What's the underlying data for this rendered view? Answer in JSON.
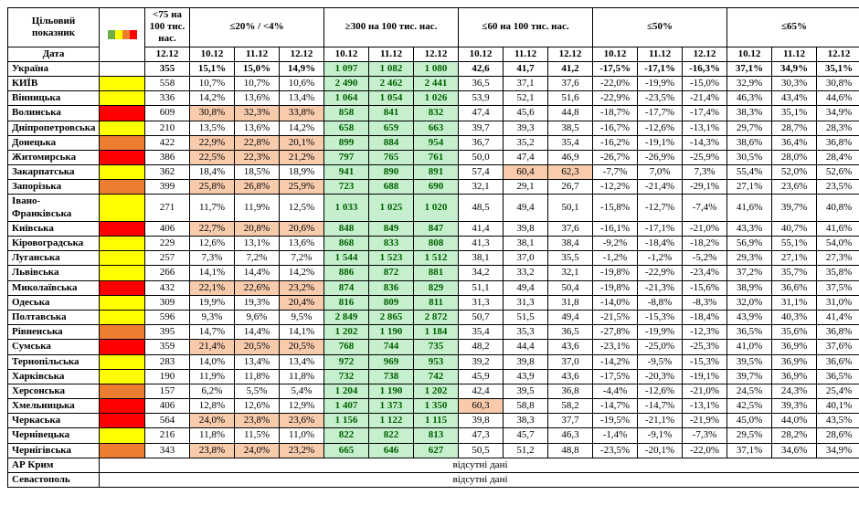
{
  "header": {
    "target_label": "Цільовий показник",
    "date_label": "Дата",
    "groups": [
      "<75 на 100 тис. нас.",
      "≤20% / <4%",
      "≥300 на 100 тис. нас.",
      "≤60 на 100 тис. нас.",
      "≤50%",
      "≤65%"
    ],
    "dates": [
      "12.12",
      "10.12",
      "11.12",
      "12.12",
      "10.12",
      "11.12",
      "12.12",
      "10.12",
      "11.12",
      "12.12",
      "10.12",
      "11.12",
      "12.12",
      "10.12",
      "11.12",
      "12.12"
    ]
  },
  "colors": {
    "green": "#70ad47",
    "yellow": "#ffff00",
    "orange": "#ed7d31",
    "red": "#ff0000",
    "cell_green": "#c6efce",
    "cell_pink": "#f8cbad",
    "cell_blue": "#bdd7ee",
    "border": "#000000"
  },
  "legend_colors": [
    "#70ad47",
    "#ffff00",
    "#ed7d31",
    "#ff0000"
  ],
  "col_widths": {
    "region": 100,
    "legend": 50,
    "data": 49
  },
  "rows": [
    {
      "name": "Україна",
      "color": "",
      "v": [
        "355",
        "15,1%",
        "15,0%",
        "14,9%",
        "1 097",
        "1 082",
        "1 080",
        "42,6",
        "41,7",
        "41,2",
        "-17,5%",
        "-17,1%",
        "-16,3%",
        "37,1%",
        "34,9%",
        "35,1%"
      ],
      "hl": {
        "1": "b",
        "2": "b",
        "3": "b",
        "4": "g",
        "5": "g",
        "6": "g"
      }
    },
    {
      "name": "КИЇВ",
      "color": "#ffff00",
      "v": [
        "558",
        "10,7%",
        "10,7%",
        "10,6%",
        "2 490",
        "2 462",
        "2 441",
        "36,5",
        "37,1",
        "37,6",
        "-22,0%",
        "-19,9%",
        "-15,0%",
        "32,9%",
        "30,3%",
        "30,8%"
      ],
      "hl": {
        "4": "g",
        "5": "g",
        "6": "g"
      }
    },
    {
      "name": "Вінницька",
      "color": "#ffff00",
      "v": [
        "336",
        "14,2%",
        "13,6%",
        "13,4%",
        "1 064",
        "1 054",
        "1 026",
        "53,9",
        "52,1",
        "51,6",
        "-22,9%",
        "-23,5%",
        "-21,4%",
        "46,3%",
        "43,4%",
        "44,6%"
      ],
      "hl": {
        "4": "g",
        "5": "g",
        "6": "g"
      }
    },
    {
      "name": "Волинська",
      "color": "#ff0000",
      "v": [
        "609",
        "30,8%",
        "32,3%",
        "33,8%",
        "858",
        "841",
        "832",
        "47,4",
        "45,6",
        "44,8",
        "-18,7%",
        "-17,7%",
        "-17,4%",
        "38,3%",
        "35,1%",
        "34,9%"
      ],
      "hl": {
        "1": "p",
        "2": "p",
        "3": "p",
        "4": "g",
        "5": "g",
        "6": "g"
      }
    },
    {
      "name": "Дніпропетровська",
      "color": "#ffff00",
      "v": [
        "210",
        "13,5%",
        "13,6%",
        "14,2%",
        "658",
        "659",
        "663",
        "39,7",
        "39,3",
        "38,5",
        "-16,7%",
        "-12,6%",
        "-13,1%",
        "29,7%",
        "28,7%",
        "28,3%"
      ],
      "hl": {
        "4": "g",
        "5": "g",
        "6": "g"
      }
    },
    {
      "name": "Донецька",
      "color": "#ed7d31",
      "v": [
        "422",
        "22,9%",
        "22,8%",
        "20,1%",
        "899",
        "884",
        "954",
        "36,7",
        "35,2",
        "35,4",
        "-16,2%",
        "-19,1%",
        "-14,3%",
        "38,6%",
        "36,4%",
        "36,8%"
      ],
      "hl": {
        "1": "p",
        "2": "p",
        "3": "p",
        "4": "g",
        "5": "g",
        "6": "g"
      }
    },
    {
      "name": "Житомирська",
      "color": "#ff0000",
      "v": [
        "386",
        "22,5%",
        "22,3%",
        "21,2%",
        "797",
        "765",
        "761",
        "50,0",
        "47,4",
        "46,9",
        "-26,7%",
        "-26,9%",
        "-25,9%",
        "30,5%",
        "28,0%",
        "28,4%"
      ],
      "hl": {
        "1": "p",
        "2": "p",
        "3": "p",
        "4": "g",
        "5": "g",
        "6": "g"
      }
    },
    {
      "name": "Закарпатська",
      "color": "#ffff00",
      "v": [
        "362",
        "18,4%",
        "18,5%",
        "18,9%",
        "941",
        "890",
        "891",
        "57,4",
        "60,4",
        "62,3",
        "-7,7%",
        "7,0%",
        "7,3%",
        "55,4%",
        "52,0%",
        "52,6%"
      ],
      "hl": {
        "4": "g",
        "5": "g",
        "6": "g",
        "8": "p",
        "9": "p"
      }
    },
    {
      "name": "Запорізька",
      "color": "#ed7d31",
      "v": [
        "399",
        "25,8%",
        "26,8%",
        "25,9%",
        "723",
        "688",
        "690",
        "32,1",
        "29,1",
        "26,7",
        "-12,2%",
        "-21,4%",
        "-29,1%",
        "27,1%",
        "23,6%",
        "23,5%"
      ],
      "hl": {
        "1": "p",
        "2": "p",
        "3": "p",
        "4": "g",
        "5": "g",
        "6": "g"
      }
    },
    {
      "name": "Івано-Франківська",
      "color": "#ffff00",
      "v": [
        "271",
        "11,7%",
        "11,9%",
        "12,5%",
        "1 033",
        "1 025",
        "1 020",
        "48,5",
        "49,4",
        "50,1",
        "-15,8%",
        "-12,7%",
        "-7,4%",
        "41,6%",
        "39,7%",
        "40,8%"
      ],
      "hl": {
        "4": "g",
        "5": "g",
        "6": "g"
      }
    },
    {
      "name": "Київська",
      "color": "#ff0000",
      "v": [
        "406",
        "22,7%",
        "20,8%",
        "20,6%",
        "848",
        "849",
        "847",
        "41,4",
        "39,8",
        "37,6",
        "-16,1%",
        "-17,1%",
        "-21,0%",
        "43,3%",
        "40,7%",
        "41,6%"
      ],
      "hl": {
        "1": "p",
        "2": "p",
        "3": "p",
        "4": "g",
        "5": "g",
        "6": "g"
      }
    },
    {
      "name": "Кіровоградська",
      "color": "#ffff00",
      "v": [
        "229",
        "12,6%",
        "13,1%",
        "13,6%",
        "868",
        "833",
        "808",
        "41,3",
        "38,1",
        "38,4",
        "-9,2%",
        "-18,4%",
        "-18,2%",
        "56,9%",
        "55,1%",
        "54,0%"
      ],
      "hl": {
        "4": "g",
        "5": "g",
        "6": "g"
      }
    },
    {
      "name": "Луганська",
      "color": "#ffff00",
      "v": [
        "257",
        "7,3%",
        "7,2%",
        "7,2%",
        "1 544",
        "1 523",
        "1 512",
        "38,1",
        "37,0",
        "35,5",
        "-1,2%",
        "-1,2%",
        "-5,2%",
        "29,3%",
        "27,1%",
        "27,3%"
      ],
      "hl": {
        "4": "g",
        "5": "g",
        "6": "g"
      }
    },
    {
      "name": "Львівська",
      "color": "#ffff00",
      "v": [
        "266",
        "14,1%",
        "14,4%",
        "14,2%",
        "886",
        "872",
        "881",
        "34,2",
        "33,2",
        "32,1",
        "-19,8%",
        "-22,9%",
        "-23,4%",
        "37,2%",
        "35,7%",
        "35,8%"
      ],
      "hl": {
        "4": "g",
        "5": "g",
        "6": "g"
      }
    },
    {
      "name": "Миколаївська",
      "color": "#ff0000",
      "v": [
        "432",
        "22,1%",
        "22,6%",
        "23,2%",
        "874",
        "836",
        "829",
        "51,1",
        "49,4",
        "50,4",
        "-19,8%",
        "-21,3%",
        "-15,6%",
        "38,9%",
        "36,6%",
        "37,5%"
      ],
      "hl": {
        "1": "p",
        "2": "p",
        "3": "p",
        "4": "g",
        "5": "g",
        "6": "g"
      }
    },
    {
      "name": "Одеська",
      "color": "#ffff00",
      "v": [
        "309",
        "19,9%",
        "19,3%",
        "20,4%",
        "816",
        "809",
        "811",
        "31,3",
        "31,3",
        "31,8",
        "-14,0%",
        "-8,8%",
        "-8,3%",
        "32,0%",
        "31,1%",
        "31,0%"
      ],
      "hl": {
        "3": "p",
        "4": "g",
        "5": "g",
        "6": "g"
      }
    },
    {
      "name": "Полтавська",
      "color": "#ffff00",
      "v": [
        "596",
        "9,3%",
        "9,6%",
        "9,5%",
        "2 849",
        "2 865",
        "2 872",
        "50,7",
        "51,5",
        "49,4",
        "-21,5%",
        "-15,3%",
        "-18,4%",
        "43,9%",
        "40,3%",
        "41,4%"
      ],
      "hl": {
        "4": "g",
        "5": "g",
        "6": "g"
      }
    },
    {
      "name": "Рівненська",
      "color": "#ed7d31",
      "v": [
        "395",
        "14,7%",
        "14,4%",
        "14,1%",
        "1 202",
        "1 190",
        "1 184",
        "35,4",
        "35,3",
        "36,5",
        "-27,8%",
        "-19,9%",
        "-12,3%",
        "36,5%",
        "35,6%",
        "36,8%"
      ],
      "hl": {
        "4": "g",
        "5": "g",
        "6": "g"
      }
    },
    {
      "name": "Сумська",
      "color": "#ff0000",
      "v": [
        "359",
        "21,4%",
        "20,5%",
        "20,5%",
        "768",
        "744",
        "735",
        "48,2",
        "44,4",
        "43,6",
        "-23,1%",
        "-25,0%",
        "-25,3%",
        "41,0%",
        "36,9%",
        "37,6%"
      ],
      "hl": {
        "1": "p",
        "2": "p",
        "3": "p",
        "4": "g",
        "5": "g",
        "6": "g"
      }
    },
    {
      "name": "Тернопільська",
      "color": "#ffff00",
      "v": [
        "283",
        "14,0%",
        "13,4%",
        "13,4%",
        "972",
        "969",
        "953",
        "39,2",
        "39,8",
        "37,0",
        "-14,2%",
        "-9,5%",
        "-15,3%",
        "39,5%",
        "36,9%",
        "36,6%"
      ],
      "hl": {
        "4": "g",
        "5": "g",
        "6": "g"
      }
    },
    {
      "name": "Харківська",
      "color": "#ffff00",
      "v": [
        "190",
        "11,9%",
        "11,8%",
        "11,8%",
        "732",
        "738",
        "742",
        "45,9",
        "43,9",
        "43,6",
        "-17,5%",
        "-20,3%",
        "-19,1%",
        "39,7%",
        "36,9%",
        "36,5%"
      ],
      "hl": {
        "4": "g",
        "5": "g",
        "6": "g"
      }
    },
    {
      "name": "Херсонська",
      "color": "#ed7d31",
      "v": [
        "157",
        "6,2%",
        "5,5%",
        "5,4%",
        "1 204",
        "1 190",
        "1 202",
        "42,4",
        "39,5",
        "36,8",
        "-4,4%",
        "-12,6%",
        "-21,0%",
        "24,5%",
        "24,3%",
        "25,4%"
      ],
      "hl": {
        "4": "g",
        "5": "g",
        "6": "g"
      }
    },
    {
      "name": "Хмельницька",
      "color": "#ff0000",
      "v": [
        "406",
        "12,8%",
        "12,6%",
        "12,9%",
        "1 407",
        "1 373",
        "1 350",
        "60,3",
        "58,8",
        "58,2",
        "-14,7%",
        "-14,7%",
        "-13,1%",
        "42,5%",
        "39,3%",
        "40,1%"
      ],
      "hl": {
        "4": "g",
        "5": "g",
        "6": "g",
        "7": "p"
      }
    },
    {
      "name": "Черкаська",
      "color": "#ff0000",
      "v": [
        "564",
        "24,0%",
        "23,8%",
        "23,6%",
        "1 156",
        "1 122",
        "1 115",
        "39,8",
        "38,3",
        "37,7",
        "-19,5%",
        "-21,1%",
        "-21,9%",
        "45,0%",
        "44,0%",
        "43,5%"
      ],
      "hl": {
        "1": "p",
        "2": "p",
        "3": "p",
        "4": "g",
        "5": "g",
        "6": "g"
      }
    },
    {
      "name": "Чернівецька",
      "color": "#ffff00",
      "v": [
        "216",
        "11,8%",
        "11,5%",
        "11,0%",
        "822",
        "822",
        "813",
        "47,3",
        "45,7",
        "46,3",
        "-1,4%",
        "-9,1%",
        "-7,3%",
        "29,5%",
        "28,2%",
        "28,6%"
      ],
      "hl": {
        "4": "g",
        "5": "g",
        "6": "g"
      }
    },
    {
      "name": "Чернігівська",
      "color": "#ed7d31",
      "v": [
        "343",
        "23,8%",
        "24,0%",
        "23,2%",
        "665",
        "646",
        "627",
        "50,5",
        "51,2",
        "48,8",
        "-23,5%",
        "-20,1%",
        "-22,0%",
        "37,1%",
        "34,6%",
        "34,9%"
      ],
      "hl": {
        "1": "p",
        "2": "p",
        "3": "p",
        "4": "g",
        "5": "g",
        "6": "g"
      }
    }
  ],
  "absent": [
    {
      "name": "АР Крим",
      "text": "відсутні дані"
    },
    {
      "name": "Севастополь",
      "text": "відсутні дані"
    }
  ]
}
